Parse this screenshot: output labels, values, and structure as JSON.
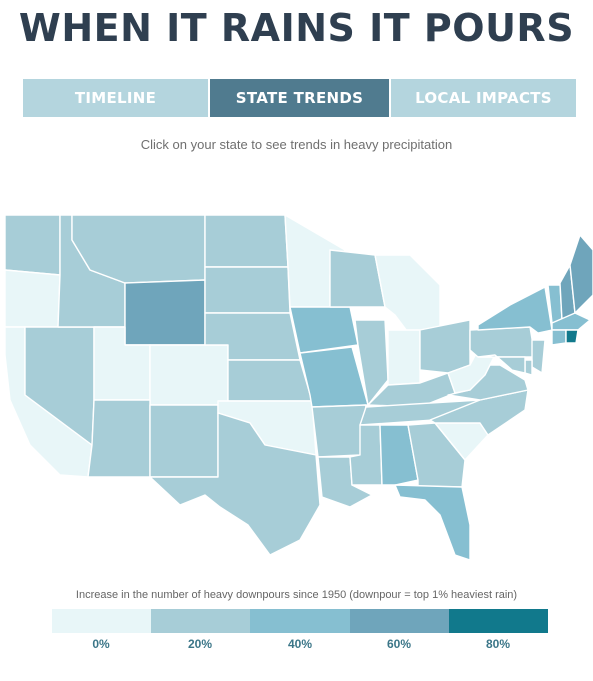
{
  "header": {
    "title": "WHEN IT RAINS IT POURS"
  },
  "tabs": [
    {
      "label": "TIMELINE",
      "active": false
    },
    {
      "label": "STATE TRENDS",
      "active": true
    },
    {
      "label": "LOCAL IMPACTS",
      "active": false
    }
  ],
  "instruction": "Click on your state to see trends in heavy precipitation",
  "legend": {
    "caption": "Increase in the number of heavy downpours since 1950 (downpour = top 1% heaviest rain)",
    "labels": [
      "0%",
      "20%",
      "40%",
      "60%",
      "80%"
    ]
  },
  "colors": {
    "title": "#2f3f50",
    "tab_inactive": "#b4d5de",
    "tab_active": "#507b8f",
    "instruction": "#6f6f6f",
    "caption": "#666666",
    "legend_label": "#3b7688",
    "class_0": "#e8f6f8",
    "class_1": "#a7cdd7",
    "class_2": "#86bfd1",
    "class_3": "#6fa5bb",
    "class_4": "#11798c"
  },
  "map": {
    "states": [
      {
        "id": "WA",
        "cls": 1
      },
      {
        "id": "OR",
        "cls": 0
      },
      {
        "id": "CA",
        "cls": 0
      },
      {
        "id": "NV",
        "cls": 1
      },
      {
        "id": "ID",
        "cls": 1
      },
      {
        "id": "MT",
        "cls": 1
      },
      {
        "id": "WY",
        "cls": 3
      },
      {
        "id": "UT",
        "cls": 0
      },
      {
        "id": "CO",
        "cls": 0
      },
      {
        "id": "AZ",
        "cls": 1
      },
      {
        "id": "NM",
        "cls": 1
      },
      {
        "id": "ND",
        "cls": 1
      },
      {
        "id": "SD",
        "cls": 1
      },
      {
        "id": "NE",
        "cls": 1
      },
      {
        "id": "KS",
        "cls": 1
      },
      {
        "id": "OK",
        "cls": 0
      },
      {
        "id": "TX",
        "cls": 1
      },
      {
        "id": "MN",
        "cls": 0
      },
      {
        "id": "IA",
        "cls": 2
      },
      {
        "id": "MO",
        "cls": 2
      },
      {
        "id": "AR",
        "cls": 1
      },
      {
        "id": "LA",
        "cls": 1
      },
      {
        "id": "WI",
        "cls": 1
      },
      {
        "id": "IL",
        "cls": 1
      },
      {
        "id": "MI",
        "cls": 0
      },
      {
        "id": "IN",
        "cls": 0
      },
      {
        "id": "OH",
        "cls": 1
      },
      {
        "id": "KY",
        "cls": 1
      },
      {
        "id": "TN",
        "cls": 1
      },
      {
        "id": "MS",
        "cls": 1
      },
      {
        "id": "AL",
        "cls": 2
      },
      {
        "id": "GA",
        "cls": 1
      },
      {
        "id": "FL",
        "cls": 2
      },
      {
        "id": "SC",
        "cls": 0
      },
      {
        "id": "NC",
        "cls": 1
      },
      {
        "id": "VA",
        "cls": 1
      },
      {
        "id": "WV",
        "cls": 0
      },
      {
        "id": "PA",
        "cls": 1
      },
      {
        "id": "NY",
        "cls": 2
      },
      {
        "id": "VT",
        "cls": 2
      },
      {
        "id": "NH",
        "cls": 3
      },
      {
        "id": "ME",
        "cls": 3
      },
      {
        "id": "MA",
        "cls": 2
      },
      {
        "id": "CT",
        "cls": 2
      },
      {
        "id": "RI",
        "cls": 4
      },
      {
        "id": "NJ",
        "cls": 1
      },
      {
        "id": "DE",
        "cls": 1
      },
      {
        "id": "MD",
        "cls": 1
      }
    ]
  }
}
